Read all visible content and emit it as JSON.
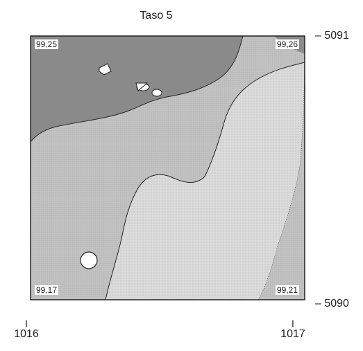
{
  "title": "Taso 5",
  "corner_labels": {
    "top_left": "99,25",
    "top_right": "99,26",
    "bottom_left": "99,17",
    "bottom_right": "99,21"
  },
  "y_axis": {
    "top": "– 5091",
    "bottom": "– 5090"
  },
  "x_axis": {
    "left_mark": "I",
    "left": "1016",
    "right_mark": "I",
    "right": "1017"
  },
  "colors": {
    "high_zone": "#8a8a8a",
    "mid_zone": "#bcbcbc",
    "low_zone": "#dadada",
    "frame": "#222222"
  }
}
